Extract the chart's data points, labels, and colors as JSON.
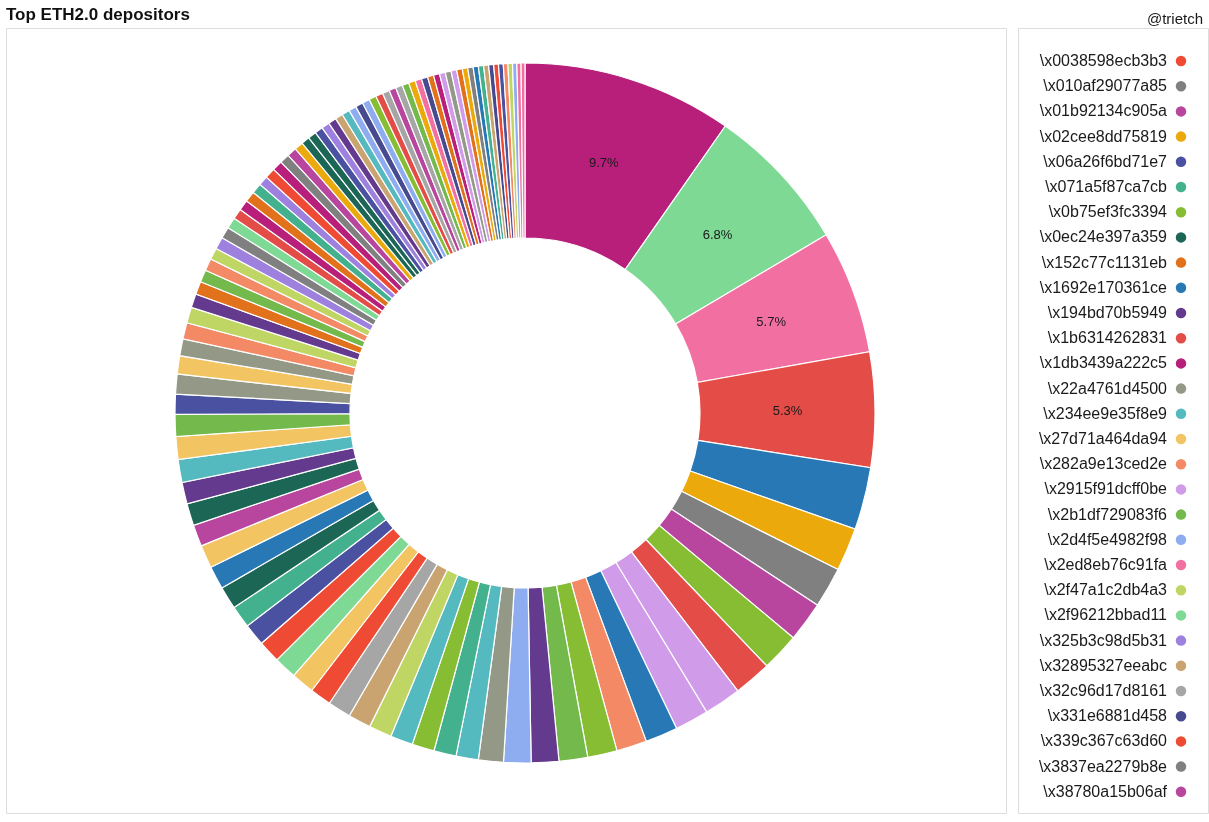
{
  "chart_data": [
    {
      "type": "donut",
      "title": "Top ETH2.0 depositors",
      "categories": [
        null,
        null,
        null,
        null,
        null,
        null,
        null,
        null,
        null,
        null,
        null,
        null,
        null,
        null,
        null,
        null,
        null,
        null,
        null,
        null,
        null,
        null,
        null,
        null,
        null,
        null,
        null,
        null,
        null,
        null,
        null,
        null,
        null,
        null,
        null,
        null,
        null,
        null,
        null,
        null,
        null,
        null,
        null,
        null,
        null,
        null,
        null,
        null,
        null,
        null,
        null,
        null,
        null,
        null,
        null,
        null,
        null,
        null,
        null,
        null,
        null,
        null,
        null,
        null,
        null,
        null,
        null,
        null,
        null,
        null,
        null,
        null,
        null,
        null,
        null,
        null,
        null,
        null,
        null,
        null,
        null,
        null,
        null,
        null,
        null,
        null,
        null,
        null,
        null,
        null,
        null,
        null,
        null,
        null,
        null,
        null,
        null,
        null,
        null,
        null,
        null,
        null,
        null
      ],
      "values": [
        9.7,
        6.8,
        5.7,
        5.3,
        2.88,
        2.0,
        1.87,
        1.85,
        1.76,
        1.74,
        1.71,
        1.56,
        1.5,
        1.4,
        1.36,
        1.32,
        1.27,
        1.26,
        1.15,
        1.03,
        1.03,
        1.03,
        1.04,
        1.06,
        1.05,
        1.07,
        0.99,
        1.07,
        1.04,
        1.03,
        1.02,
        1.03,
        1.05,
        1.07,
        1.06,
        1.0,
        1.02,
        1.0,
        1.06,
        1.05,
        1.01,
        0.92,
        0.92,
        0.84,
        0.78,
        0.75,
        0.73,
        0.64,
        0.6,
        0.57,
        0.56,
        0.54,
        0.56,
        0.53,
        0.51,
        0.48,
        0.49,
        0.49,
        0.48,
        0.44,
        0.48,
        0.47,
        0.45,
        0.44,
        0.4,
        0.39,
        0.38,
        0.38,
        0.37,
        0.37,
        0.36,
        0.36,
        0.35,
        0.35,
        0.34,
        0.34,
        0.33,
        0.33,
        0.32,
        0.32,
        0.31,
        0.31,
        0.3,
        0.29,
        0.28,
        0.28,
        0.27,
        0.27,
        0.26,
        0.26,
        0.25,
        0.25,
        0.24,
        0.24,
        0.23,
        0.23,
        0.22,
        0.22,
        0.21,
        0.21,
        0.2,
        0.19,
        0.18
      ],
      "colors": [
        "#b81f7b",
        "#7dd994",
        "#f26fa2",
        "#e44c48",
        "#2878b6",
        "#eca90b",
        "#808080",
        "#b8459e",
        "#86bd33",
        "#e44c48",
        "#d09be9",
        "#d09be9",
        "#2878b6",
        "#f48965",
        "#86bd33",
        "#74b94c",
        "#643a8e",
        "#8eadf0",
        "#939887",
        "#55b9c0",
        "#44b18e",
        "#86bd33",
        "#55b9c0",
        "#c0d664",
        "#c9a471",
        "#a6a6a6",
        "#ef4a33",
        "#f2c462",
        "#7dd994",
        "#ef4a33",
        "#4a51a0",
        "#44b18e",
        "#1c6656",
        "#2878b6",
        "#f2c462",
        "#b8459e",
        "#1c6656",
        "#643a8e",
        "#55b9c0",
        "#f2c462",
        "#74b94c",
        "#4a51a0",
        "#939887",
        "#f2c462",
        "#939887",
        "#f48965",
        "#c0d664",
        "#643a8e",
        "#e2711b",
        "#74b94c",
        "#f48965",
        "#c0d664",
        "#9e80de",
        "#808080",
        "#7dd994",
        "#e44c48",
        "#b81f7b",
        "#e2711b",
        "#44b18e",
        "#9e80de",
        "#ef4a33",
        "#b81f7b",
        "#808080",
        "#b8459e",
        "#eca90b",
        "#1c6656",
        "#1c6656",
        "#4a51a0",
        "#9e80de",
        "#643a8e",
        "#c9a471",
        "#55b9c0",
        "#8eadf0",
        "#474a8f",
        "#8eadf0",
        "#86bd33",
        "#e44c48",
        "#a6a6a6",
        "#b8459e",
        "#a6a6a6",
        "#74b94c",
        "#eca90b",
        "#f26fa2",
        "#474a8f",
        "#e2711b",
        "#b81f7b",
        "#d09be9",
        "#939887",
        "#d09be9",
        "#e2711b",
        "#eca90b",
        "#808080",
        "#2878b6",
        "#44b18e",
        "#c9a471",
        "#474a8f",
        "#ef4a33",
        "#4a51a0",
        "#f48965",
        "#c0d664",
        "#8eadf0",
        "#f26fa2",
        "#f26fa2"
      ],
      "value_labels": [
        "9.7%",
        "6.8%",
        "5.7%",
        "5.3%",
        null,
        null,
        null,
        null,
        null,
        null,
        null,
        null,
        null,
        null,
        null,
        null,
        null,
        null,
        null,
        null,
        null,
        null,
        null,
        null,
        null,
        null,
        null,
        null,
        null,
        null,
        null,
        null,
        null,
        null,
        null,
        null,
        null,
        null,
        null,
        null,
        null,
        null,
        null,
        null,
        null,
        null,
        null,
        null,
        null,
        null,
        null,
        null,
        null,
        null,
        null,
        null,
        null,
        null,
        null,
        null,
        null,
        null,
        null,
        null,
        null,
        null,
        null,
        null,
        null,
        null,
        null,
        null,
        null,
        null,
        null,
        null,
        null,
        null,
        null,
        null,
        null,
        null,
        null,
        null,
        null,
        null,
        null,
        null,
        null,
        null,
        null,
        null,
        null,
        null,
        null,
        null,
        null,
        null,
        null,
        null,
        null,
        null,
        null
      ]
    },
    {
      "type": "other",
      "annotations": [
        "@trietch"
      ],
      "categories": [
        "\\x0038598ecb3b3",
        "\\x010af29077a85",
        "\\x01b92134c905a",
        "\\x02cee8dd75819",
        "\\x06a26f6bd71e7",
        "\\x071a5f87ca7cb",
        "\\x0b75ef3fc3394",
        "\\x0ec24e397a359",
        "\\x152c77c1131eb",
        "\\x1692e170361ce",
        "\\x194bd70b5949",
        "\\x1b6314262831",
        "\\x1db3439a222c5",
        "\\x22a4761d4500",
        "\\x234ee9e35f8e9",
        "\\x27d71a464da94",
        "\\x282a9e13ced2e",
        "\\x2915f91dcff0be",
        "\\x2b1df729083f6",
        "\\x2d4f5e4982f98",
        "\\x2ed8eb76c91fa",
        "\\x2f47a1c2db4a3",
        "\\x2f96212bbad11",
        "\\x325b3c98d5b31",
        "\\x32895327eeabc",
        "\\x32c96d17d8161",
        "\\x331e6881d458",
        "\\x339c367c63d60",
        "\\x3837ea2279b8e",
        "\\x38780a15b06af"
      ],
      "colors": [
        "#ef4a33",
        "#808080",
        "#b8459e",
        "#eca90b",
        "#4a51a0",
        "#44b18e",
        "#86bd33",
        "#1c6656",
        "#e2711b",
        "#2878b6",
        "#643a8e",
        "#e44c48",
        "#b81f7b",
        "#939887",
        "#55b9c0",
        "#f2c462",
        "#f48965",
        "#d09be9",
        "#74b94c",
        "#8eadf0",
        "#f26fa2",
        "#c0d664",
        "#7dd994",
        "#9e80de",
        "#c9a471",
        "#a6a6a6",
        "#474a8f",
        "#ef4a33",
        "#808080",
        "#b8459e"
      ]
    }
  ]
}
